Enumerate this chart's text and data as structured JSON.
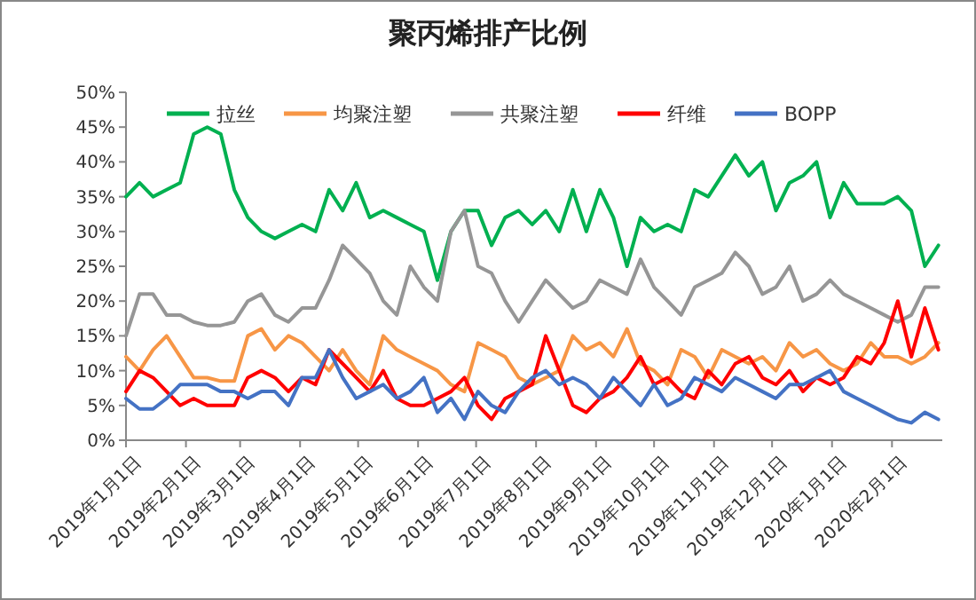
{
  "chart_data": {
    "type": "line",
    "title": "聚丙烯排产比例",
    "x": [
      "2019-01-01",
      "2019-01-08",
      "2019-01-15",
      "2019-01-22",
      "2019-01-29",
      "2019-02-05",
      "2019-02-12",
      "2019-02-19",
      "2019-02-26",
      "2019-03-05",
      "2019-03-12",
      "2019-03-19",
      "2019-03-26",
      "2019-04-02",
      "2019-04-09",
      "2019-04-16",
      "2019-04-23",
      "2019-04-30",
      "2019-05-07",
      "2019-05-14",
      "2019-05-21",
      "2019-05-28",
      "2019-06-04",
      "2019-06-11",
      "2019-06-18",
      "2019-06-25",
      "2019-07-02",
      "2019-07-09",
      "2019-07-16",
      "2019-07-23",
      "2019-07-30",
      "2019-08-06",
      "2019-08-13",
      "2019-08-20",
      "2019-08-27",
      "2019-09-03",
      "2019-09-10",
      "2019-09-17",
      "2019-09-24",
      "2019-10-01",
      "2019-10-08",
      "2019-10-15",
      "2019-10-22",
      "2019-10-29",
      "2019-11-05",
      "2019-11-12",
      "2019-11-19",
      "2019-11-26",
      "2019-12-03",
      "2019-12-10",
      "2019-12-17",
      "2019-12-24",
      "2019-12-31",
      "2020-01-07",
      "2020-01-14",
      "2020-01-21",
      "2020-01-28",
      "2020-02-04",
      "2020-02-11",
      "2020-02-18",
      "2020-02-25"
    ],
    "series": [
      {
        "name": "拉丝",
        "color": "#00b050",
        "values": [
          35,
          37,
          35,
          36,
          37,
          44,
          45,
          44,
          36,
          32,
          30,
          29,
          30,
          31,
          30,
          36,
          33,
          37,
          32,
          33,
          32,
          31,
          30,
          23,
          30,
          33,
          33,
          28,
          32,
          33,
          31,
          33,
          30,
          36,
          30,
          36,
          32,
          25,
          32,
          30,
          31,
          30,
          36,
          35,
          38,
          41,
          38,
          40,
          33,
          37,
          38,
          40,
          32,
          37,
          34,
          34,
          34,
          35,
          33,
          25,
          28
        ]
      },
      {
        "name": "均聚注塑",
        "color": "#f79646",
        "values": [
          12,
          10,
          13,
          15,
          12,
          9,
          9,
          8.5,
          8.5,
          15,
          16,
          13,
          15,
          14,
          12,
          10,
          13,
          10,
          8,
          15,
          13,
          12,
          11,
          10,
          8,
          7,
          14,
          13,
          12,
          9,
          8,
          9,
          10,
          15,
          13,
          14,
          12,
          16,
          11,
          10,
          8,
          13,
          12,
          9,
          13,
          12,
          11,
          12,
          10,
          14,
          12,
          13,
          11,
          10,
          11,
          14,
          12,
          12,
          11,
          12,
          14
        ]
      },
      {
        "name": "共聚注塑",
        "color": "#969696",
        "values": [
          15,
          21,
          21,
          18,
          18,
          17,
          16.5,
          16.5,
          17,
          20,
          21,
          18,
          17,
          19,
          19,
          23,
          28,
          26,
          24,
          20,
          18,
          25,
          22,
          20,
          30,
          33,
          25,
          24,
          20,
          17,
          20,
          23,
          21,
          19,
          20,
          23,
          22,
          21,
          26,
          22,
          20,
          18,
          22,
          23,
          24,
          27,
          25,
          21,
          22,
          25,
          20,
          21,
          23,
          21,
          20,
          19,
          18,
          17,
          18,
          22,
          22
        ]
      },
      {
        "name": "纤维",
        "color": "#ff0000",
        "values": [
          7,
          10,
          9,
          7,
          5,
          6,
          5,
          5,
          5,
          9,
          10,
          9,
          7,
          9,
          8,
          13,
          11,
          9,
          7,
          10,
          6,
          5,
          5,
          6,
          7,
          9,
          5,
          3,
          6,
          7,
          8,
          15,
          10,
          5,
          4,
          6,
          7,
          9,
          12,
          8,
          9,
          7,
          6,
          10,
          8,
          11,
          12,
          9,
          8,
          10,
          7,
          9,
          8,
          9,
          12,
          11,
          14,
          20,
          12,
          19,
          13
        ]
      },
      {
        "name": "BOPP",
        "color": "#4472c4",
        "values": [
          6,
          4.5,
          4.5,
          6,
          8,
          8,
          8,
          7,
          7,
          6,
          7,
          7,
          5,
          9,
          9,
          13,
          9,
          6,
          7,
          8,
          6,
          7,
          9,
          4,
          6,
          3,
          7,
          5,
          4,
          7,
          9,
          10,
          8,
          9,
          8,
          6,
          9,
          7,
          5,
          8,
          5,
          6,
          9,
          8,
          7,
          9,
          8,
          7,
          6,
          8,
          8,
          9,
          10,
          7,
          6,
          5,
          4,
          3,
          2.5,
          4,
          3
        ]
      }
    ],
    "xlim": [
      "2019-01-01",
      "2020-02-27"
    ],
    "xticks": [
      {
        "value": "2019-01-01",
        "label": "2019年1月1日"
      },
      {
        "value": "2019-02-01",
        "label": "2019年2月1日"
      },
      {
        "value": "2019-03-01",
        "label": "2019年3月1日"
      },
      {
        "value": "2019-04-01",
        "label": "2019年4月1日"
      },
      {
        "value": "2019-05-01",
        "label": "2019年5月1日"
      },
      {
        "value": "2019-06-01",
        "label": "2019年6月1日"
      },
      {
        "value": "2019-07-01",
        "label": "2019年7月1日"
      },
      {
        "value": "2019-08-01",
        "label": "2019年8月1日"
      },
      {
        "value": "2019-09-01",
        "label": "2019年9月1日"
      },
      {
        "value": "2019-10-01",
        "label": "2019年10月1日"
      },
      {
        "value": "2019-11-01",
        "label": "2019年11月1日"
      },
      {
        "value": "2019-12-01",
        "label": "2019年12月1日"
      },
      {
        "value": "2020-01-01",
        "label": "2020年1月1日"
      },
      {
        "value": "2020-02-01",
        "label": "2020年2月1日"
      }
    ],
    "ylim": [
      0,
      50
    ],
    "yticks": [
      {
        "value": 0,
        "label": "0%"
      },
      {
        "value": 5,
        "label": "5%"
      },
      {
        "value": 10,
        "label": "10%"
      },
      {
        "value": 15,
        "label": "15%"
      },
      {
        "value": 20,
        "label": "20%"
      },
      {
        "value": 25,
        "label": "25%"
      },
      {
        "value": 30,
        "label": "30%"
      },
      {
        "value": 35,
        "label": "35%"
      },
      {
        "value": 40,
        "label": "40%"
      },
      {
        "value": 45,
        "label": "45%"
      },
      {
        "value": 50,
        "label": "50%"
      }
    ],
    "grid": false,
    "legend": "top",
    "marker": "none",
    "line_style": "solid"
  }
}
